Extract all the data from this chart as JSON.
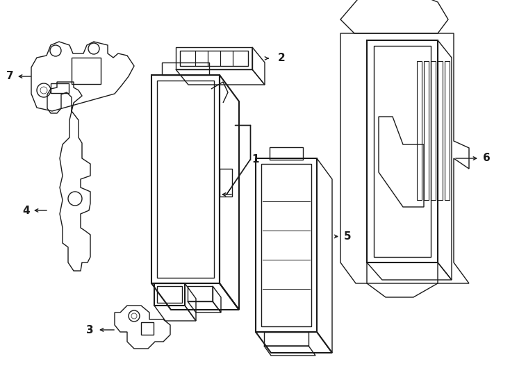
{
  "bg_color": "#ffffff",
  "line_color": "#1a1a1a",
  "lw": 1.0,
  "lw_thick": 1.5,
  "fig_width": 7.34,
  "fig_height": 5.4,
  "dpi": 100
}
